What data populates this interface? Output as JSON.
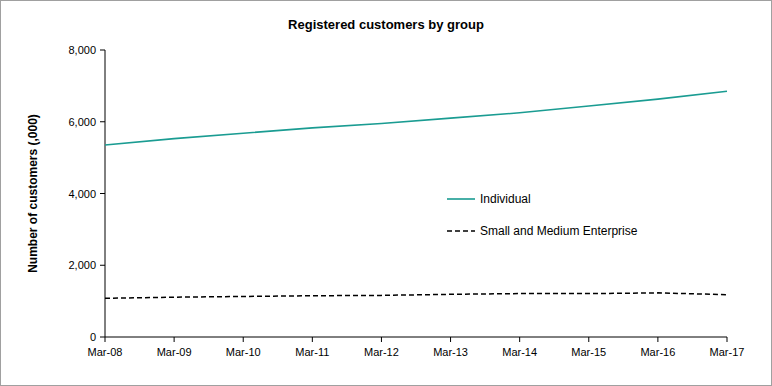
{
  "chart_data": {
    "type": "line",
    "title": "Registered customers by group",
    "y_label": "Number of customers (,000)",
    "categories": [
      "Mar-08",
      "Mar-09",
      "Mar-10",
      "Mar-11",
      "Mar-12",
      "Mar-13",
      "Mar-14",
      "Mar-15",
      "Mar-16",
      "Mar-17"
    ],
    "series": [
      {
        "name": "Individual",
        "color": "#1a9c92",
        "line_style": "solid",
        "values": [
          5350,
          5530,
          5680,
          5830,
          5950,
          6100,
          6250,
          6440,
          6630,
          6850
        ]
      },
      {
        "name": "Small and Medium Enterprise",
        "color": "#000000",
        "line_style": "dashed",
        "values": [
          1080,
          1110,
          1130,
          1150,
          1160,
          1190,
          1210,
          1210,
          1230,
          1180
        ]
      }
    ],
    "ylim": [
      0,
      8000
    ],
    "yticks": [
      0,
      {
        "value": 2000,
        "label": "2,000"
      },
      {
        "value": 4000,
        "label": "4,000"
      },
      {
        "value": 6000,
        "label": "6,000"
      },
      {
        "value": 8000,
        "label": "8,000"
      }
    ],
    "grid": false,
    "legend": "right"
  }
}
